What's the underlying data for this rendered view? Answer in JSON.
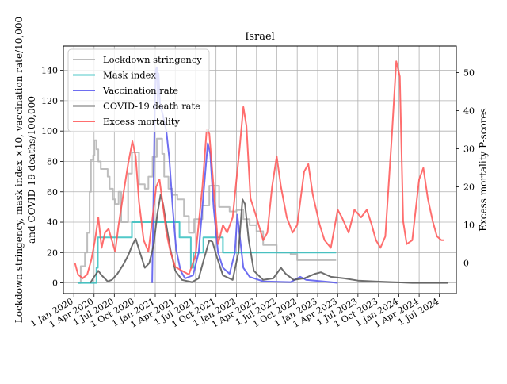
{
  "chart_data": {
    "type": "line",
    "title": "Israel",
    "ylabel_left_line1": "Lockdown stringency, mask index ×10, vaccination rate/10,000",
    "ylabel_left_line2": "and COVID-19 deaths/100,000",
    "ylabel_right": "Excess mortality P-scores",
    "xlim": [
      "2019-11-15",
      "2024-09-15"
    ],
    "ylim_left": [
      -7,
      156
    ],
    "ylim_right": [
      -8,
      57
    ],
    "grid": true,
    "legend_position": "top-left",
    "x_ticks": [
      {
        "date": "2020-01-01",
        "label": "1 Jan 2020"
      },
      {
        "date": "2020-04-01",
        "label": "1 Apr 2020"
      },
      {
        "date": "2020-07-01",
        "label": "1 Jul 2020"
      },
      {
        "date": "2020-10-01",
        "label": "1 Oct 2020"
      },
      {
        "date": "2021-01-01",
        "label": "1 Jan 2021"
      },
      {
        "date": "2021-04-01",
        "label": "1 Apr 2021"
      },
      {
        "date": "2021-07-01",
        "label": "1 Jul 2021"
      },
      {
        "date": "2021-10-01",
        "label": "1 Oct 2021"
      },
      {
        "date": "2022-01-01",
        "label": "1 Jan 2022"
      },
      {
        "date": "2022-04-01",
        "label": "1 Apr 2022"
      },
      {
        "date": "2022-07-01",
        "label": "1 Jul 2022"
      },
      {
        "date": "2022-10-01",
        "label": "1 Oct 2022"
      },
      {
        "date": "2023-01-01",
        "label": "1 Jan 2023"
      },
      {
        "date": "2023-04-01",
        "label": "1 Apr 2023"
      },
      {
        "date": "2023-07-01",
        "label": "1 Jul 2023"
      },
      {
        "date": "2023-10-01",
        "label": "1 Oct 2023"
      },
      {
        "date": "2024-01-01",
        "label": "1 Jan 2024"
      },
      {
        "date": "2024-04-01",
        "label": "1 Apr 2024"
      },
      {
        "date": "2024-07-01",
        "label": "1 Jul 2024"
      }
    ],
    "y_ticks_left": [
      0,
      20,
      40,
      60,
      80,
      100,
      120,
      140
    ],
    "y_ticks_right": [
      0,
      10,
      20,
      30,
      40,
      50
    ],
    "series": [
      {
        "name": "Lockdown stringency",
        "color": "#b3b3b3",
        "axis": "left",
        "step": true,
        "points": [
          [
            "2020-01-20",
            0
          ],
          [
            "2020-02-01",
            11
          ],
          [
            "2020-02-20",
            20
          ],
          [
            "2020-03-01",
            33
          ],
          [
            "2020-03-12",
            60
          ],
          [
            "2020-03-18",
            81
          ],
          [
            "2020-03-28",
            84
          ],
          [
            "2020-04-03",
            94
          ],
          [
            "2020-04-12",
            88
          ],
          [
            "2020-04-20",
            80
          ],
          [
            "2020-05-01",
            75
          ],
          [
            "2020-06-01",
            70
          ],
          [
            "2020-06-10",
            62
          ],
          [
            "2020-06-25",
            55
          ],
          [
            "2020-07-05",
            52
          ],
          [
            "2020-07-20",
            60
          ],
          [
            "2020-08-01",
            40
          ],
          [
            "2020-09-01",
            72
          ],
          [
            "2020-09-18",
            86
          ],
          [
            "2020-10-20",
            65
          ],
          [
            "2020-11-15",
            62
          ],
          [
            "2020-12-01",
            70
          ],
          [
            "2020-12-20",
            83
          ],
          [
            "2021-01-08",
            95
          ],
          [
            "2021-02-01",
            85
          ],
          [
            "2021-02-10",
            70
          ],
          [
            "2021-03-01",
            62
          ],
          [
            "2021-03-20",
            58
          ],
          [
            "2021-04-10",
            55
          ],
          [
            "2021-05-10",
            44
          ],
          [
            "2021-06-01",
            33
          ],
          [
            "2021-06-25",
            42
          ],
          [
            "2021-08-01",
            51
          ],
          [
            "2021-09-01",
            64
          ],
          [
            "2021-10-15",
            50
          ],
          [
            "2021-12-01",
            47
          ],
          [
            "2022-01-01",
            48
          ],
          [
            "2022-02-01",
            42
          ],
          [
            "2022-03-01",
            38
          ],
          [
            "2022-04-01",
            34
          ],
          [
            "2022-05-01",
            25
          ],
          [
            "2022-07-01",
            20
          ],
          [
            "2022-09-01",
            19
          ],
          [
            "2022-10-01",
            15
          ],
          [
            "2023-03-25",
            15
          ]
        ]
      },
      {
        "name": "Mask index",
        "color": "#33c0c0",
        "axis": "left",
        "step": true,
        "points": [
          [
            "2020-01-20",
            0
          ],
          [
            "2020-04-12",
            10
          ],
          [
            "2020-04-18",
            30
          ],
          [
            "2020-08-20",
            30
          ],
          [
            "2020-09-18",
            40
          ],
          [
            "2021-04-20",
            30
          ],
          [
            "2021-06-10",
            10
          ],
          [
            "2021-06-22",
            20
          ],
          [
            "2021-08-05",
            30
          ],
          [
            "2021-11-01",
            20
          ],
          [
            "2022-08-01",
            20
          ],
          [
            "2023-03-25",
            20
          ]
        ]
      },
      {
        "name": "Vaccination rate",
        "color": "#5555ee",
        "axis": "left",
        "step": false,
        "points": [
          [
            "2020-12-18",
            0
          ],
          [
            "2020-12-24",
            55
          ],
          [
            "2020-12-29",
            110
          ],
          [
            "2021-01-03",
            140
          ],
          [
            "2021-01-08",
            142
          ],
          [
            "2021-01-12",
            118
          ],
          [
            "2021-01-16",
            138
          ],
          [
            "2021-01-22",
            118
          ],
          [
            "2021-02-05",
            110
          ],
          [
            "2021-02-20",
            100
          ],
          [
            "2021-03-05",
            82
          ],
          [
            "2021-03-20",
            50
          ],
          [
            "2021-04-05",
            22
          ],
          [
            "2021-04-25",
            8
          ],
          [
            "2021-05-15",
            3
          ],
          [
            "2021-06-20",
            5
          ],
          [
            "2021-07-15",
            20
          ],
          [
            "2021-08-01",
            50
          ],
          [
            "2021-08-15",
            75
          ],
          [
            "2021-08-25",
            92
          ],
          [
            "2021-09-05",
            85
          ],
          [
            "2021-09-20",
            50
          ],
          [
            "2021-10-10",
            20
          ],
          [
            "2021-11-01",
            10
          ],
          [
            "2021-12-01",
            6
          ],
          [
            "2021-12-25",
            20
          ],
          [
            "2022-01-05",
            45
          ],
          [
            "2022-01-15",
            32
          ],
          [
            "2022-02-01",
            10
          ],
          [
            "2022-03-01",
            4
          ],
          [
            "2022-05-01",
            1
          ],
          [
            "2022-09-01",
            0.5
          ],
          [
            "2022-10-15",
            4
          ],
          [
            "2022-11-10",
            2
          ],
          [
            "2023-03-01",
            0.5
          ],
          [
            "2023-04-01",
            0
          ]
        ]
      },
      {
        "name": "COVID-19 death rate",
        "color": "#555555",
        "axis": "left",
        "step": false,
        "points": [
          [
            "2020-03-15",
            0
          ],
          [
            "2020-04-01",
            4
          ],
          [
            "2020-04-20",
            8
          ],
          [
            "2020-05-05",
            5
          ],
          [
            "2020-06-01",
            1
          ],
          [
            "2020-06-20",
            2
          ],
          [
            "2020-07-15",
            6
          ],
          [
            "2020-08-10",
            12
          ],
          [
            "2020-09-01",
            18
          ],
          [
            "2020-09-20",
            25
          ],
          [
            "2020-10-05",
            29
          ],
          [
            "2020-10-20",
            22
          ],
          [
            "2020-11-15",
            10
          ],
          [
            "2020-12-05",
            13
          ],
          [
            "2020-12-25",
            25
          ],
          [
            "2021-01-10",
            45
          ],
          [
            "2021-01-25",
            58
          ],
          [
            "2021-02-05",
            52
          ],
          [
            "2021-02-20",
            38
          ],
          [
            "2021-03-10",
            22
          ],
          [
            "2021-04-01",
            8
          ],
          [
            "2021-05-01",
            2
          ],
          [
            "2021-06-15",
            0.5
          ],
          [
            "2021-07-15",
            3
          ],
          [
            "2021-08-10",
            17
          ],
          [
            "2021-09-01",
            28
          ],
          [
            "2021-09-15",
            27
          ],
          [
            "2021-10-05",
            17
          ],
          [
            "2021-11-01",
            5
          ],
          [
            "2021-12-15",
            2
          ],
          [
            "2022-01-10",
            20
          ],
          [
            "2022-01-28",
            55
          ],
          [
            "2022-02-08",
            52
          ],
          [
            "2022-02-25",
            28
          ],
          [
            "2022-03-20",
            8
          ],
          [
            "2022-05-01",
            2
          ],
          [
            "2022-06-15",
            3
          ],
          [
            "2022-07-20",
            10
          ],
          [
            "2022-08-10",
            6
          ],
          [
            "2022-09-15",
            2
          ],
          [
            "2022-11-01",
            3
          ],
          [
            "2022-12-20",
            6
          ],
          [
            "2023-01-15",
            7
          ],
          [
            "2023-03-01",
            4
          ],
          [
            "2023-05-01",
            3
          ],
          [
            "2023-07-01",
            1.5
          ],
          [
            "2023-09-15",
            1
          ],
          [
            "2023-12-01",
            0.5
          ],
          [
            "2024-03-01",
            0
          ],
          [
            "2024-08-10",
            0
          ]
        ]
      },
      {
        "name": "Excess mortality",
        "color": "#ff5555",
        "axis": "right",
        "step": false,
        "points": [
          [
            "2020-01-06",
            0
          ],
          [
            "2020-01-20",
            -3
          ],
          [
            "2020-02-10",
            -4
          ],
          [
            "2020-03-01",
            -3
          ],
          [
            "2020-03-20",
            1
          ],
          [
            "2020-04-05",
            6
          ],
          [
            "2020-04-20",
            12
          ],
          [
            "2020-05-05",
            4
          ],
          [
            "2020-05-20",
            8
          ],
          [
            "2020-06-05",
            9
          ],
          [
            "2020-06-20",
            6
          ],
          [
            "2020-07-05",
            3
          ],
          [
            "2020-07-20",
            10
          ],
          [
            "2020-08-10",
            18
          ],
          [
            "2020-09-01",
            26
          ],
          [
            "2020-09-20",
            32
          ],
          [
            "2020-10-05",
            28
          ],
          [
            "2020-10-20",
            16
          ],
          [
            "2020-11-10",
            6
          ],
          [
            "2020-12-01",
            3
          ],
          [
            "2020-12-20",
            12
          ],
          [
            "2021-01-05",
            20
          ],
          [
            "2021-01-20",
            22
          ],
          [
            "2021-02-05",
            15
          ],
          [
            "2021-02-20",
            8
          ],
          [
            "2021-03-10",
            3
          ],
          [
            "2021-04-01",
            -1
          ],
          [
            "2021-05-01",
            -2
          ],
          [
            "2021-06-01",
            -3
          ],
          [
            "2021-07-01",
            2
          ],
          [
            "2021-08-01",
            20
          ],
          [
            "2021-08-20",
            35
          ],
          [
            "2021-09-01",
            34
          ],
          [
            "2021-09-20",
            20
          ],
          [
            "2021-10-10",
            5
          ],
          [
            "2021-11-01",
            10
          ],
          [
            "2021-11-20",
            8
          ],
          [
            "2021-12-15",
            12
          ],
          [
            "2022-01-15",
            30
          ],
          [
            "2022-02-01",
            41
          ],
          [
            "2022-02-15",
            36
          ],
          [
            "2022-03-05",
            17
          ],
          [
            "2022-04-01",
            12
          ],
          [
            "2022-05-01",
            6
          ],
          [
            "2022-05-20",
            8
          ],
          [
            "2022-06-10",
            20
          ],
          [
            "2022-07-01",
            28
          ],
          [
            "2022-07-20",
            20
          ],
          [
            "2022-08-15",
            12
          ],
          [
            "2022-09-10",
            8
          ],
          [
            "2022-10-01",
            10
          ],
          [
            "2022-11-01",
            24
          ],
          [
            "2022-11-20",
            26
          ],
          [
            "2022-12-10",
            18
          ],
          [
            "2023-01-10",
            10
          ],
          [
            "2023-02-01",
            6
          ],
          [
            "2023-03-01",
            4
          ],
          [
            "2023-04-01",
            14
          ],
          [
            "2023-04-20",
            12
          ],
          [
            "2023-05-20",
            8
          ],
          [
            "2023-06-15",
            14
          ],
          [
            "2023-07-15",
            12
          ],
          [
            "2023-08-10",
            14
          ],
          [
            "2023-09-01",
            10
          ],
          [
            "2023-09-20",
            6
          ],
          [
            "2023-10-10",
            4
          ],
          [
            "2023-11-01",
            7
          ],
          [
            "2023-12-01",
            34
          ],
          [
            "2023-12-20",
            53
          ],
          [
            "2024-01-05",
            49
          ],
          [
            "2024-01-20",
            11
          ],
          [
            "2024-02-05",
            5
          ],
          [
            "2024-03-01",
            6
          ],
          [
            "2024-04-01",
            22
          ],
          [
            "2024-04-20",
            25
          ],
          [
            "2024-05-10",
            17
          ],
          [
            "2024-06-01",
            11
          ],
          [
            "2024-06-20",
            7
          ],
          [
            "2024-07-10",
            6
          ],
          [
            "2024-07-20",
            6
          ]
        ]
      }
    ]
  }
}
